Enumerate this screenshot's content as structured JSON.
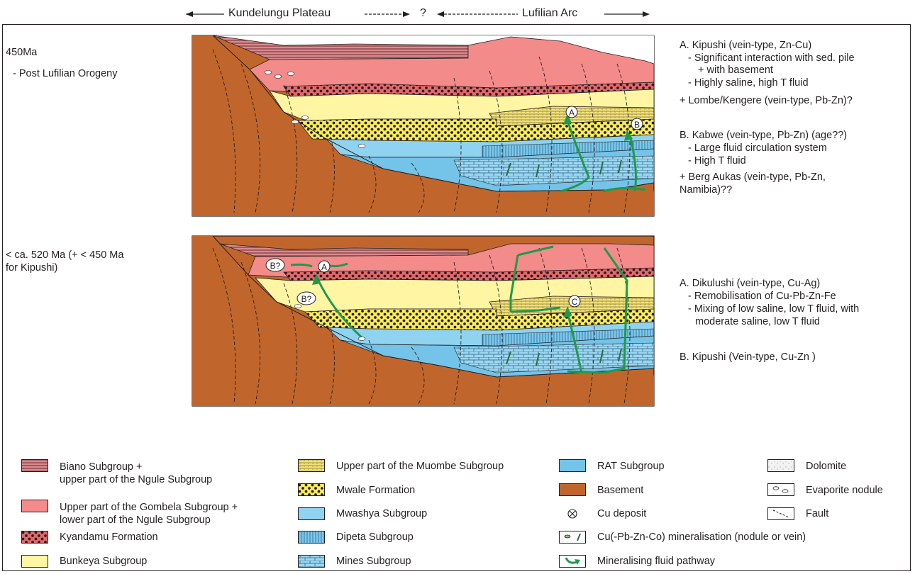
{
  "header": {
    "left": "Kundelungu Plateau",
    "question": "?",
    "right": "Lufilian Arc"
  },
  "panel_top": {
    "age": "450Ma",
    "event": "- Post Lufilian Orogeny",
    "notes": [
      "A. Kipushi (vein-type, Zn-Cu)",
      "- Significant interaction with sed. pile",
      "+ with basement",
      "- Highly saline, high T fluid",
      "+ Lombe/Kengere (vein-type, Pb-Zn)?",
      "B. Kabwe (vein-type, Pb-Zn) (age??)",
      "- Large fluid circulation system",
      "- High T fluid",
      "+ Berg Aukas (vein-type, Pb-Zn,",
      "Namibia)??"
    ],
    "markers": [
      "A",
      "B"
    ]
  },
  "panel_bottom": {
    "age_line1": "< ca. 520 Ma (+ < 450 Ma",
    "age_line2": "for Kipushi)",
    "notes": [
      "A. Dikulushi (vein-type, Cu-Ag)",
      "- Remobilisation of Cu-Pb-Zn-Fe",
      "- Mixing of low saline, low T fluid, with",
      "moderate saline, low T fluid",
      "B. Kipushi (Vein-type, Cu-Zn )"
    ],
    "markers": [
      "B?",
      "A",
      "B?",
      "C"
    ]
  },
  "legend": [
    {
      "label": "Biano Subgroup +\nupper part of the Ngule Subgroup",
      "pattern": "stripes",
      "color": "#d98a8f",
      "icon": "biano-swatch"
    },
    {
      "label": "Upper part of the Gombela Subgroup +\nlower part of the Ngule Subgroup",
      "pattern": "solid",
      "color": "#f28b8a",
      "icon": "gombela-swatch"
    },
    {
      "label": "Kyandamu Formation",
      "pattern": "dots",
      "color": "#e8676b",
      "icon": "kyandamu-swatch"
    },
    {
      "label": "Bunkeya Subgroup",
      "pattern": "solid",
      "color": "#fff5a3",
      "icon": "bunkeya-swatch"
    },
    {
      "label": "Upper part of the Muombe Subgroup",
      "pattern": "hatch",
      "color": "#f2e27d",
      "icon": "muombe-swatch"
    },
    {
      "label": "Mwale Formation",
      "pattern": "dots",
      "color": "#fbec5a",
      "icon": "mwale-swatch"
    },
    {
      "label": "Mwashya Subgroup",
      "pattern": "solid",
      "color": "#8fd3f0",
      "icon": "mwashya-swatch"
    },
    {
      "label": "Dipeta Subgroup",
      "pattern": "vlines",
      "color": "#7cc6ea",
      "icon": "dipeta-swatch"
    },
    {
      "label": "Mines Subgroup",
      "pattern": "bricks",
      "color": "#9dd6ef",
      "icon": "mines-swatch"
    },
    {
      "label": "RAT Subgroup",
      "pattern": "solid",
      "color": "#74c3e8",
      "icon": "rat-swatch"
    },
    {
      "label": "Basement",
      "pattern": "solid",
      "color": "#c0662d",
      "icon": "basement-swatch"
    },
    {
      "label": "Cu deposit",
      "pattern": "symbol",
      "color": "#231f20",
      "icon": "cu-deposit-icon"
    },
    {
      "label": "Cu(-Pb-Zn-Co) mineralisation (nodule or vein)",
      "pattern": "symbol",
      "color": "#231f20",
      "icon": "mineralisation-icon"
    },
    {
      "label": "Mineralising fluid pathway",
      "pattern": "symbol",
      "color": "#1f9a4a",
      "icon": "fluid-pathway-icon"
    },
    {
      "label": "Dolomite",
      "pattern": "speckle",
      "color": "#f2f2f2",
      "icon": "dolomite-swatch"
    },
    {
      "label": "Evaporite nodule",
      "pattern": "symbol",
      "color": "#231f20",
      "icon": "evaporite-nodule-icon"
    },
    {
      "label": "Fault",
      "pattern": "symbol",
      "color": "#231f20",
      "icon": "fault-icon"
    }
  ],
  "colors": {
    "basement": "#c0662d",
    "gombela": "#f28b8a",
    "kyandamu": "#e8676b",
    "bunkeya": "#fff5a3",
    "mwale": "#fbec5a",
    "mwashya": "#8fd3f0",
    "rat": "#74c3e8",
    "fluid": "#1f9a4a"
  }
}
